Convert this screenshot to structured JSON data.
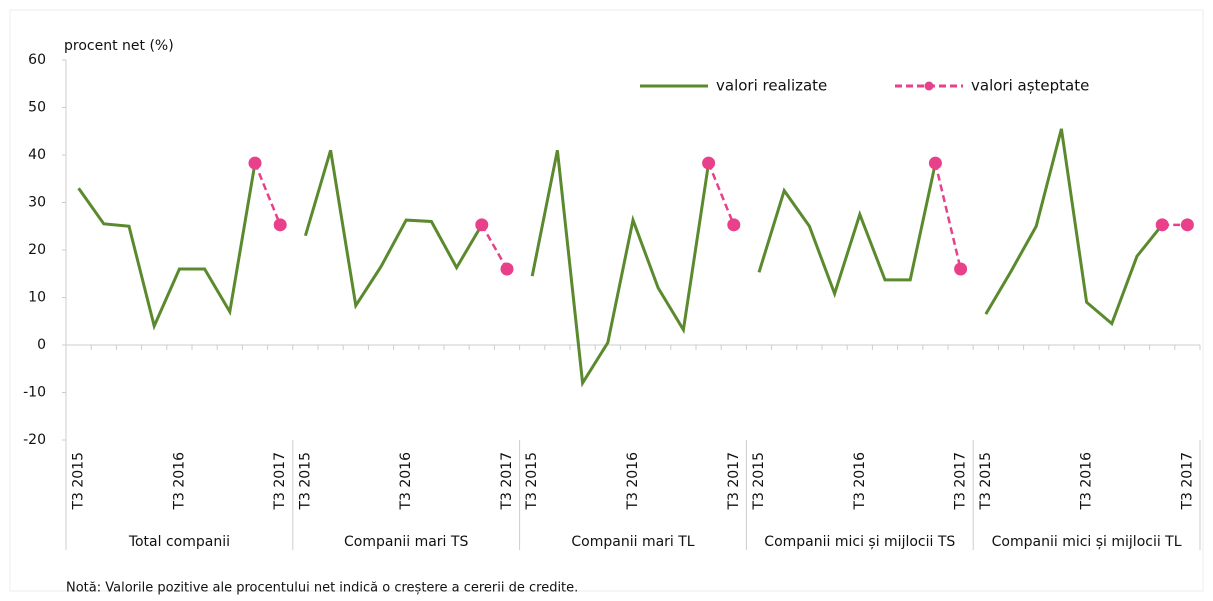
{
  "chart_data": {
    "type": "line",
    "y_label": "procent net (%)",
    "note": "Notă: Valorile pozitive ale procentului net indică o creștere  a cererii de credite.",
    "groups": [
      "Total companii",
      "Companii  mari TS",
      "Companii mari TL",
      "Companii mici și mijlocii  TS",
      "Companii  mici și mijlocii  TL"
    ],
    "categories": [
      "T3 2015",
      null,
      null,
      null,
      "T3 2016",
      null,
      null,
      null,
      "T3 2017",
      "T3 2015",
      null,
      null,
      null,
      "T3 2016",
      null,
      null,
      null,
      "T3 2017",
      "T3 2015",
      null,
      null,
      null,
      "T3 2016",
      null,
      null,
      null,
      "T3 2017",
      "T3 2015",
      null,
      null,
      null,
      "T3 2016",
      null,
      null,
      null,
      "T3 2017",
      "T3 2015",
      null,
      null,
      null,
      "T3 2016",
      null,
      null,
      null,
      "T3 2017"
    ],
    "series": [
      {
        "name": "valori realizate",
        "color": "#5b8a2e",
        "dashed": false,
        "markers": false,
        "values": [
          33,
          25.5,
          25,
          4,
          16,
          16,
          7,
          38.3,
          null,
          23,
          41,
          8.3,
          16.5,
          26.3,
          26,
          16.3,
          25.3,
          null,
          14.5,
          41,
          -8,
          0.5,
          26.3,
          12,
          3.2,
          38.3,
          null,
          15.3,
          32.5,
          25,
          10.8,
          27.5,
          13.7,
          13.7,
          38.3,
          null,
          6.5,
          15.5,
          25,
          45.5,
          9,
          4.5,
          18.7,
          25.3,
          null
        ]
      },
      {
        "name": "valori așteptate",
        "color": "#e8408a",
        "dashed": true,
        "markers": true,
        "values": [
          null,
          null,
          null,
          null,
          null,
          null,
          null,
          38.3,
          25.3,
          null,
          null,
          null,
          null,
          null,
          null,
          null,
          25.3,
          16,
          null,
          null,
          null,
          null,
          null,
          null,
          null,
          38.3,
          25.3,
          null,
          null,
          null,
          null,
          null,
          null,
          null,
          38.3,
          16,
          null,
          null,
          null,
          null,
          null,
          null,
          null,
          25.3,
          25.3
        ]
      }
    ],
    "ylim": [
      -20,
      60
    ],
    "yticks": [
      -20,
      -10,
      0,
      10,
      20,
      30,
      40,
      50,
      60
    ],
    "grid": false
  }
}
